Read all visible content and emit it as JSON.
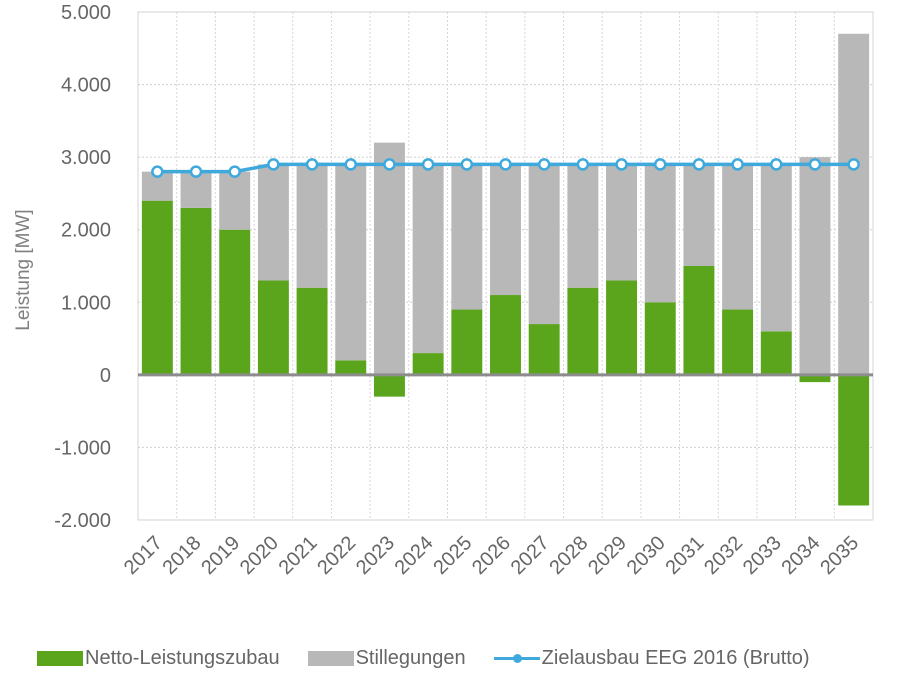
{
  "chart_data": {
    "type": "bar",
    "stacked": true,
    "ylabel": "Leistung [MW]",
    "ylim": [
      -2000,
      5000
    ],
    "ytick_values": [
      -2000,
      -1000,
      0,
      1000,
      2000,
      3000,
      4000,
      5000
    ],
    "ytick_labels": [
      "-2.000",
      "-1.000",
      "0",
      "1.000",
      "2.000",
      "3.000",
      "4.000",
      "5.000"
    ],
    "grid": true,
    "legend_position": "bottom",
    "categories": [
      "2017",
      "2018",
      "2019",
      "2020",
      "2021",
      "2022",
      "2023",
      "2024",
      "2025",
      "2026",
      "2027",
      "2028",
      "2029",
      "2030",
      "2031",
      "2032",
      "2033",
      "2034",
      "2035"
    ],
    "series": [
      {
        "name": "Netto-Leistungszubau",
        "kind": "bar",
        "color": "#5aa51b",
        "values": [
          2400,
          2300,
          2000,
          1300,
          1200,
          200,
          -300,
          300,
          900,
          1100,
          700,
          1200,
          1300,
          1000,
          1500,
          900,
          600,
          -100,
          -1800
        ]
      },
      {
        "name": "Stillegungen",
        "kind": "bar",
        "color": "#b8b8b8",
        "values": [
          400,
          500,
          800,
          1600,
          1700,
          2700,
          3200,
          2600,
          2000,
          1800,
          2200,
          1700,
          1600,
          1900,
          1400,
          2000,
          2300,
          3000,
          4700
        ]
      },
      {
        "name": "Zielausbau EEG 2016 (Brutto)",
        "kind": "line",
        "color": "#3fa9dc",
        "values": [
          2800,
          2800,
          2800,
          2900,
          2900,
          2900,
          2900,
          2900,
          2900,
          2900,
          2900,
          2900,
          2900,
          2900,
          2900,
          2900,
          2900,
          2900,
          2900
        ]
      }
    ]
  },
  "legend": {
    "items": [
      {
        "label": "Netto-Leistungszubau",
        "color": "#5aa51b",
        "kind": "bar"
      },
      {
        "label": "Stillegungen",
        "color": "#b8b8b8",
        "kind": "bar"
      },
      {
        "label": "Zielausbau EEG 2016 (Brutto)",
        "color": "#3fa9dc",
        "kind": "line"
      }
    ]
  }
}
